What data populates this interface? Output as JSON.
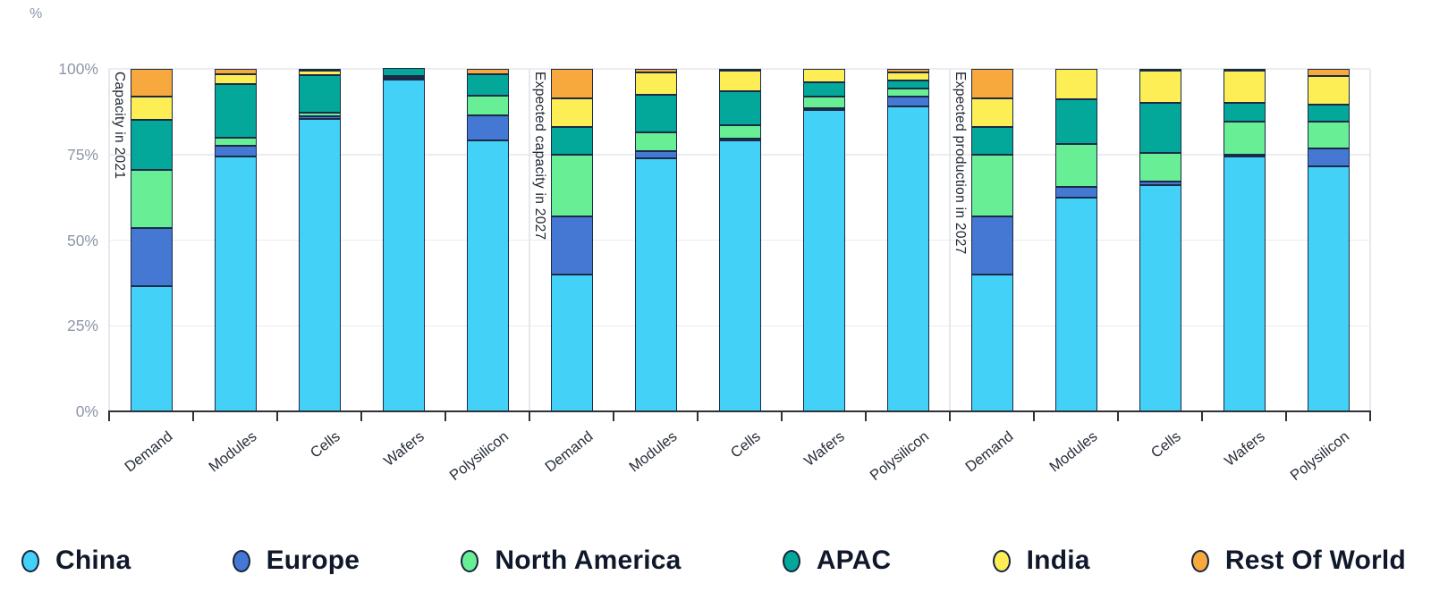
{
  "chart_data": {
    "type": "bar",
    "stacked": true,
    "normalized_to_100": true,
    "unit_label": "%",
    "ylim": [
      0,
      100
    ],
    "yticks": [
      "0%",
      "25%",
      "50%",
      "75%",
      "100%"
    ],
    "grid": "horizontal-light",
    "legend_position": "bottom",
    "categories": [
      "Demand",
      "Modules",
      "Cells",
      "Wafers",
      "Polysilicon"
    ],
    "series_names": [
      "China",
      "Europe",
      "North America",
      "APAC",
      "India",
      "Rest Of World"
    ],
    "series_colors": [
      "#44d1f7",
      "#4478d3",
      "#68ee94",
      "#03a89a",
      "#fdee55",
      "#f8a93d"
    ],
    "groups": [
      {
        "label": "Capacity in 2021",
        "bars": [
          {
            "category": "Demand",
            "values": [
              36.5,
              17,
              17,
              14.5,
              7,
              8
            ]
          },
          {
            "category": "Modules",
            "values": [
              74.5,
              3,
              2.5,
              15.5,
              3,
              1.5
            ]
          },
          {
            "category": "Cells",
            "values": [
              85.5,
              0.7,
              1,
              11,
              1.3,
              0.5
            ]
          },
          {
            "category": "Wafers",
            "values": [
              96.8,
              0.4,
              0.3,
              2.5,
              0,
              0
            ]
          },
          {
            "category": "Polysilicon",
            "values": [
              79,
              7.5,
              5.75,
              6.25,
              0,
              1.5
            ]
          }
        ]
      },
      {
        "label": "Expected capacity in 2027",
        "bars": [
          {
            "category": "Demand",
            "values": [
              40,
              17,
              18,
              8,
              8.5,
              8.5
            ]
          },
          {
            "category": "Modules",
            "values": [
              74,
              2,
              5.5,
              11,
              6.5,
              1
            ]
          },
          {
            "category": "Cells",
            "values": [
              79,
              0.5,
              4,
              10,
              6,
              0.5
            ]
          },
          {
            "category": "Wafers",
            "values": [
              88,
              0.5,
              3.5,
              4,
              4,
              0
            ]
          },
          {
            "category": "Polysilicon",
            "values": [
              89,
              2.8,
              2.4,
              2.4,
              2.4,
              1
            ]
          }
        ]
      },
      {
        "label": "Expected production in 2027",
        "bars": [
          {
            "category": "Demand",
            "values": [
              40,
              17,
              18,
              8,
              8.5,
              8.5
            ]
          },
          {
            "category": "Modules",
            "values": [
              62.5,
              3,
              12.5,
              13,
              9,
              0
            ]
          },
          {
            "category": "Cells",
            "values": [
              66,
              1,
              8.5,
              14.5,
              9.5,
              0.5
            ]
          },
          {
            "category": "Wafers",
            "values": [
              74.5,
              0.5,
              9.5,
              5.5,
              9.5,
              0.5
            ]
          },
          {
            "category": "Polysilicon",
            "values": [
              71.5,
              5.2,
              8,
              4.8,
              8.5,
              2
            ]
          }
        ]
      }
    ],
    "legend": [
      {
        "label": "China",
        "color": "#44d1f7"
      },
      {
        "label": "Europe",
        "color": "#4478d3"
      },
      {
        "label": "North America",
        "color": "#68ee94"
      },
      {
        "label": "APAC",
        "color": "#03a89a"
      },
      {
        "label": "India",
        "color": "#fdee55"
      },
      {
        "label": "Rest Of World",
        "color": "#f8a93d"
      }
    ],
    "style_colors": {
      "segment_border": "#1b2a47",
      "gridline": "#ececf1",
      "axis_text": "#8e96a8",
      "category_text": "#272e3a",
      "legend_text": "#10192b",
      "baseline": "#2e3138"
    }
  }
}
